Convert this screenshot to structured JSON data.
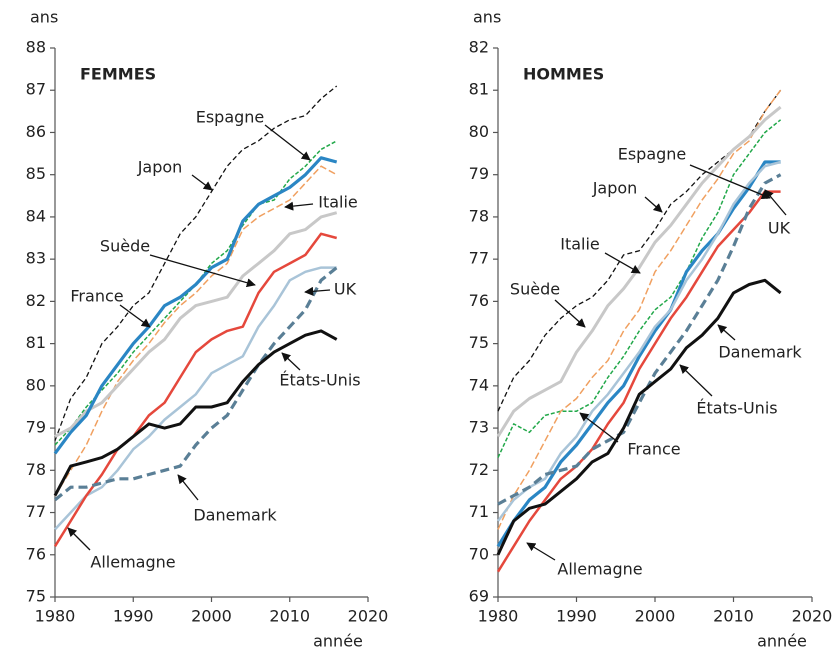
{
  "chart_data": [
    {
      "type": "line",
      "title": "FEMMES",
      "y_label": "ans",
      "x_label": "année",
      "xlim": [
        1980,
        2020
      ],
      "xticks": [
        1980,
        1990,
        2000,
        2010,
        2020
      ],
      "ylim": [
        75,
        88
      ],
      "yticks": [
        75,
        76,
        77,
        78,
        79,
        80,
        81,
        82,
        83,
        84,
        85,
        86,
        87,
        88
      ],
      "x": [
        1980,
        1982,
        1984,
        1986,
        1988,
        1990,
        1992,
        1994,
        1996,
        1998,
        2000,
        2002,
        2004,
        2006,
        2008,
        2010,
        2012,
        2014,
        2016
      ],
      "series": [
        {
          "name": "Espagne",
          "color": "#22a84a",
          "style": "dashed",
          "values": [
            78.6,
            79.0,
            79.5,
            79.9,
            80.3,
            80.8,
            81.2,
            81.6,
            82.0,
            82.4,
            82.9,
            83.2,
            83.8,
            84.3,
            84.4,
            84.9,
            85.2,
            85.6,
            85.8
          ]
        },
        {
          "name": "Japon",
          "color": "#111111",
          "style": "dashed",
          "values": [
            78.7,
            79.7,
            80.2,
            81.0,
            81.4,
            81.9,
            82.2,
            82.9,
            83.6,
            84.0,
            84.6,
            85.2,
            85.6,
            85.8,
            86.1,
            86.3,
            86.4,
            86.8,
            87.1
          ]
        },
        {
          "name": "Italie",
          "color": "#f0a060",
          "style": "dashed",
          "values": [
            77.4,
            78.0,
            78.6,
            79.4,
            80.1,
            80.6,
            81.0,
            81.5,
            81.9,
            82.2,
            82.6,
            82.9,
            83.7,
            84.0,
            84.2,
            84.4,
            84.8,
            85.2,
            85.0
          ]
        },
        {
          "name": "Suède",
          "color": "#c8c8c8",
          "style": "solid",
          "values": [
            78.8,
            79.0,
            79.4,
            79.6,
            80.0,
            80.4,
            80.8,
            81.1,
            81.6,
            81.9,
            82.0,
            82.1,
            82.6,
            82.9,
            83.2,
            83.6,
            83.7,
            84.0,
            84.1
          ]
        },
        {
          "name": "France",
          "color": "#2a86c4",
          "style": "solid",
          "values": [
            78.4,
            78.9,
            79.3,
            80.0,
            80.5,
            81.0,
            81.4,
            81.9,
            82.1,
            82.4,
            82.8,
            83.0,
            83.9,
            84.3,
            84.5,
            84.7,
            85.0,
            85.4,
            85.3
          ]
        },
        {
          "name": "UK",
          "color": "#a9c4d8",
          "style": "solid",
          "values": [
            76.6,
            77.0,
            77.4,
            77.6,
            78.0,
            78.5,
            78.8,
            79.2,
            79.5,
            79.8,
            80.3,
            80.5,
            80.7,
            81.4,
            81.9,
            82.5,
            82.7,
            82.8,
            82.8
          ]
        },
        {
          "name": "Allemagne",
          "color": "#e5483c",
          "style": "solid",
          "values": [
            76.2,
            76.8,
            77.4,
            77.9,
            78.5,
            78.8,
            79.3,
            79.6,
            80.2,
            80.8,
            81.1,
            81.3,
            81.4,
            82.2,
            82.7,
            82.9,
            83.1,
            83.6,
            83.5
          ]
        },
        {
          "name": "Danemark",
          "color": "#5a7f96",
          "style": "dashed",
          "values": [
            77.3,
            77.6,
            77.6,
            77.7,
            77.8,
            77.8,
            77.9,
            78.0,
            78.1,
            78.6,
            79.0,
            79.3,
            79.9,
            80.5,
            81.0,
            81.4,
            81.8,
            82.5,
            82.8
          ]
        },
        {
          "name": "États-Unis",
          "color": "#111111",
          "style": "solid",
          "values": [
            77.4,
            78.1,
            78.2,
            78.3,
            78.5,
            78.8,
            79.1,
            79.0,
            79.1,
            79.5,
            79.5,
            79.6,
            80.1,
            80.5,
            80.8,
            81.0,
            81.2,
            81.3,
            81.1
          ]
        }
      ]
    },
    {
      "type": "line",
      "title": "HOMMES",
      "y_label": "ans",
      "x_label": "année",
      "xlim": [
        1980,
        2020
      ],
      "xticks": [
        1980,
        1990,
        2000,
        2010,
        2020
      ],
      "ylim": [
        69,
        82
      ],
      "yticks": [
        69,
        70,
        71,
        72,
        73,
        74,
        75,
        76,
        77,
        78,
        79,
        80,
        81,
        82
      ],
      "x": [
        1980,
        1982,
        1984,
        1986,
        1988,
        1990,
        1992,
        1994,
        1996,
        1998,
        2000,
        2002,
        2004,
        2006,
        2008,
        2010,
        2012,
        2014,
        2016
      ],
      "series": [
        {
          "name": "Espagne",
          "color": "#22a84a",
          "style": "dashed",
          "values": [
            72.3,
            73.1,
            72.9,
            73.3,
            73.4,
            73.4,
            73.6,
            74.2,
            74.7,
            75.3,
            75.8,
            76.1,
            76.7,
            77.5,
            78.1,
            79.0,
            79.5,
            80.0,
            80.3
          ]
        },
        {
          "name": "Japon",
          "color": "#111111",
          "style": "dashed",
          "values": [
            73.4,
            74.2,
            74.6,
            75.2,
            75.6,
            75.9,
            76.1,
            76.5,
            77.1,
            77.2,
            77.7,
            78.3,
            78.6,
            79.0,
            79.3,
            79.6,
            79.9,
            80.5,
            81.0
          ]
        },
        {
          "name": "Italie",
          "color": "#f0a060",
          "style": "dashed",
          "values": [
            70.6,
            71.4,
            72.0,
            72.7,
            73.4,
            73.7,
            74.2,
            74.6,
            75.3,
            75.8,
            76.7,
            77.2,
            77.8,
            78.4,
            78.9,
            79.5,
            79.8,
            80.5,
            81.0
          ]
        },
        {
          "name": "Suède",
          "color": "#c8c8c8",
          "style": "solid",
          "values": [
            72.8,
            73.4,
            73.7,
            73.9,
            74.1,
            74.8,
            75.3,
            75.9,
            76.3,
            76.8,
            77.4,
            77.8,
            78.3,
            78.8,
            79.2,
            79.6,
            79.9,
            80.3,
            80.6
          ]
        },
        {
          "name": "France",
          "color": "#2a86c4",
          "style": "solid",
          "values": [
            70.2,
            70.8,
            71.3,
            71.6,
            72.2,
            72.6,
            73.1,
            73.6,
            74.0,
            74.7,
            75.3,
            75.8,
            76.7,
            77.2,
            77.6,
            78.2,
            78.7,
            79.3,
            79.3
          ]
        },
        {
          "name": "UK",
          "color": "#a9c4d8",
          "style": "solid",
          "values": [
            70.8,
            71.3,
            71.6,
            71.8,
            72.4,
            72.8,
            73.4,
            73.8,
            74.3,
            74.8,
            75.4,
            75.8,
            76.5,
            77.0,
            77.6,
            78.3,
            78.8,
            79.2,
            79.3
          ]
        },
        {
          "name": "Allemagne",
          "color": "#e5483c",
          "style": "solid",
          "values": [
            69.6,
            70.2,
            70.8,
            71.3,
            71.8,
            72.1,
            72.5,
            73.1,
            73.6,
            74.4,
            75.0,
            75.6,
            76.1,
            76.7,
            77.3,
            77.7,
            78.1,
            78.6,
            78.6
          ]
        },
        {
          "name": "Danemark",
          "color": "#5a7f96",
          "style": "dashed",
          "values": [
            71.2,
            71.4,
            71.6,
            71.9,
            72.0,
            72.1,
            72.5,
            72.7,
            72.9,
            73.6,
            74.3,
            74.8,
            75.3,
            75.9,
            76.5,
            77.3,
            78.2,
            78.8,
            79.0
          ]
        },
        {
          "name": "États-Unis",
          "color": "#111111",
          "style": "solid",
          "values": [
            70.0,
            70.8,
            71.1,
            71.2,
            71.5,
            71.8,
            72.2,
            72.4,
            73.0,
            73.8,
            74.1,
            74.4,
            74.9,
            75.2,
            75.6,
            76.2,
            76.4,
            76.5,
            76.2
          ]
        }
      ]
    }
  ]
}
